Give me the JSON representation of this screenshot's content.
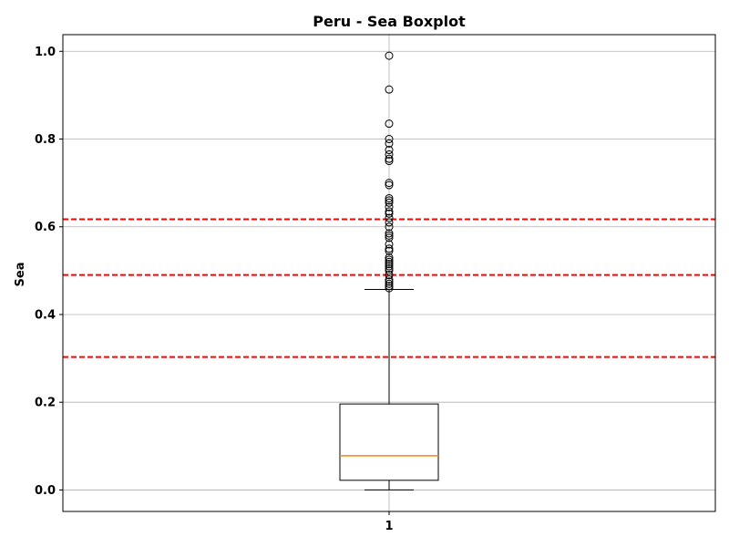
{
  "chart_data": {
    "type": "boxplot",
    "title": "Peru - Sea Boxplot",
    "xlabel": "",
    "ylabel": "Sea",
    "ylim": [
      -0.049,
      1.038
    ],
    "grid": true,
    "categories": [
      "1"
    ],
    "y_ticks": [
      "0.0",
      "0.2",
      "0.4",
      "0.6",
      "0.8",
      "1.0"
    ],
    "y_tick_values": [
      0.0,
      0.2,
      0.4,
      0.6,
      0.8,
      1.0
    ],
    "box": {
      "whisker_low": 0.0,
      "q1": 0.022,
      "median": 0.078,
      "q3": 0.196,
      "whisker_high": 0.457
    },
    "outliers": [
      0.46,
      0.465,
      0.47,
      0.475,
      0.48,
      0.49,
      0.5,
      0.505,
      0.51,
      0.515,
      0.52,
      0.525,
      0.53,
      0.545,
      0.55,
      0.56,
      0.575,
      0.58,
      0.585,
      0.6,
      0.61,
      0.62,
      0.63,
      0.635,
      0.645,
      0.655,
      0.66,
      0.665,
      0.695,
      0.7,
      0.75,
      0.755,
      0.765,
      0.775,
      0.79,
      0.8,
      0.835,
      0.913,
      0.99
    ],
    "reference_lines": [
      0.617,
      0.49,
      0.303
    ],
    "colors": {
      "median": "#ff7f0e",
      "reference": "#ff0000",
      "box": "#000000",
      "grid": "#b0b0b0"
    }
  }
}
